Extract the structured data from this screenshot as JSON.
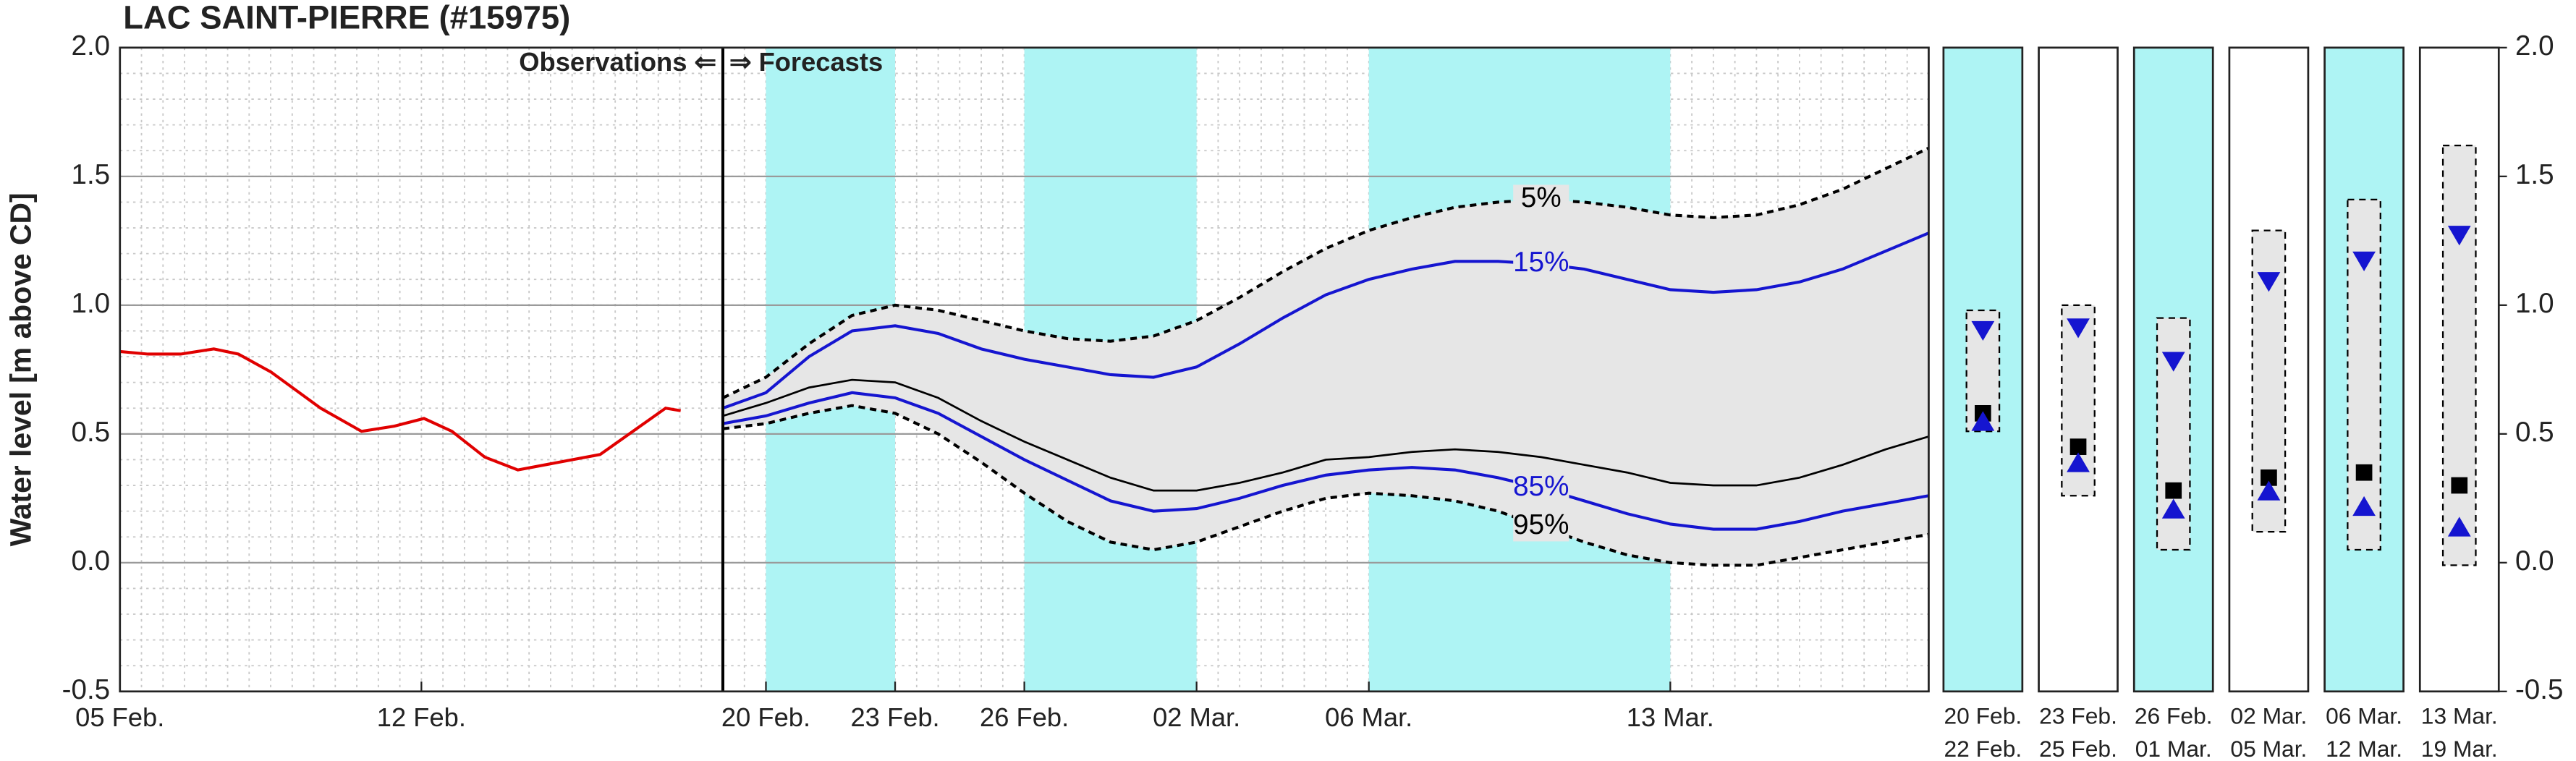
{
  "chart_data": [
    {
      "type": "line",
      "title": "LAC SAINT-PIERRE (#15975)",
      "ylabel": "Water level [m above CD]",
      "xlim": [
        0,
        42
      ],
      "xticks": [
        {
          "value": 0,
          "label": "05 Feb."
        },
        {
          "value": 7,
          "label": "12 Feb."
        },
        {
          "value": 15,
          "label": "20 Feb."
        },
        {
          "value": 18,
          "label": "23 Feb."
        },
        {
          "value": 21,
          "label": "26 Feb."
        },
        {
          "value": 25,
          "label": "02 Mar."
        },
        {
          "value": 29,
          "label": "06 Mar."
        },
        {
          "value": 36,
          "label": "13 Mar."
        }
      ],
      "ylim": [
        -0.5,
        2
      ],
      "yticks": [
        {
          "value": 2,
          "label": "2.0"
        },
        {
          "value": 1.5,
          "label": "1.5"
        },
        {
          "value": 1,
          "label": "1.0"
        },
        {
          "value": 0.5,
          "label": "0.5"
        },
        {
          "value": 0,
          "label": "0.0"
        },
        {
          "value": -0.5,
          "label": "-0.5"
        }
      ],
      "grid": true,
      "yminor": 0.1,
      "xminor": 0.5,
      "shaded": [
        [
          15,
          18
        ],
        [
          21,
          25
        ],
        [
          29,
          36
        ]
      ],
      "shade_color": "#aef4f4",
      "range_fill": "#e6e6e6",
      "forecast_start": 14,
      "annotations": [
        "Observations ⇐",
        "⇒ Forecasts"
      ],
      "series": [
        {
          "color": "#e00000",
          "x": [
            0,
            0.65,
            1.41,
            2.18,
            2.75,
            3.51,
            4.66,
            5.61,
            6.37,
            7.06,
            7.71,
            8.47,
            9.24,
            10.19,
            11.15,
            11.91,
            12.67,
            13.02
          ],
          "values": [
            0.82,
            0.81,
            0.81,
            0.83,
            0.81,
            0.74,
            0.6,
            0.51,
            0.53,
            0.56,
            0.51,
            0.41,
            0.36,
            0.39,
            0.42,
            0.51,
            0.6,
            0.59
          ]
        },
        {
          "name": "5%",
          "color": "#000000",
          "dash": true,
          "x": [
            14,
            15,
            16,
            17,
            18,
            19,
            20,
            21,
            22,
            23,
            24,
            25,
            26,
            27,
            28,
            29,
            30,
            31,
            32,
            33,
            34,
            35,
            36,
            37,
            38,
            39,
            40,
            41,
            42
          ],
          "values": [
            0.64,
            0.72,
            0.85,
            0.96,
            1.0,
            0.98,
            0.94,
            0.9,
            0.87,
            0.86,
            0.88,
            0.94,
            1.03,
            1.13,
            1.22,
            1.29,
            1.34,
            1.38,
            1.4,
            1.41,
            1.4,
            1.38,
            1.35,
            1.34,
            1.35,
            1.39,
            1.45,
            1.53,
            1.61
          ]
        },
        {
          "name": "15%",
          "color": "#1515d0",
          "x": [
            14,
            15,
            16,
            17,
            18,
            19,
            20,
            21,
            22,
            23,
            24,
            25,
            26,
            27,
            28,
            29,
            30,
            31,
            32,
            33,
            34,
            35,
            36,
            37,
            38,
            39,
            40,
            41,
            42
          ],
          "values": [
            0.6,
            0.66,
            0.8,
            0.9,
            0.92,
            0.89,
            0.83,
            0.79,
            0.76,
            0.73,
            0.72,
            0.76,
            0.85,
            0.95,
            1.04,
            1.1,
            1.14,
            1.17,
            1.17,
            1.16,
            1.14,
            1.1,
            1.06,
            1.05,
            1.06,
            1.09,
            1.14,
            1.21,
            1.28
          ]
        },
        {
          "color": "#000000",
          "x": [
            14,
            15,
            16,
            17,
            18,
            19,
            20,
            21,
            22,
            23,
            24,
            25,
            26,
            27,
            28,
            29,
            30,
            31,
            32,
            33,
            34,
            35,
            36,
            37,
            38,
            39,
            40,
            41,
            42
          ],
          "values": [
            0.57,
            0.62,
            0.68,
            0.71,
            0.7,
            0.64,
            0.55,
            0.47,
            0.4,
            0.33,
            0.28,
            0.28,
            0.31,
            0.35,
            0.4,
            0.41,
            0.43,
            0.44,
            0.43,
            0.41,
            0.38,
            0.35,
            0.31,
            0.3,
            0.3,
            0.33,
            0.38,
            0.44,
            0.49
          ]
        },
        {
          "name": "85%",
          "color": "#1515d0",
          "x": [
            14,
            15,
            16,
            17,
            18,
            19,
            20,
            21,
            22,
            23,
            24,
            25,
            26,
            27,
            28,
            29,
            30,
            31,
            32,
            33,
            34,
            35,
            36,
            37,
            38,
            39,
            40,
            41,
            42
          ],
          "values": [
            0.54,
            0.57,
            0.62,
            0.66,
            0.64,
            0.58,
            0.49,
            0.4,
            0.32,
            0.24,
            0.2,
            0.21,
            0.25,
            0.3,
            0.34,
            0.36,
            0.37,
            0.36,
            0.33,
            0.29,
            0.24,
            0.19,
            0.15,
            0.13,
            0.13,
            0.16,
            0.2,
            0.23,
            0.26
          ]
        },
        {
          "name": "95%",
          "color": "#000000",
          "dash": true,
          "x": [
            14,
            15,
            16,
            17,
            18,
            19,
            20,
            21,
            22,
            23,
            24,
            25,
            26,
            27,
            28,
            29,
            30,
            31,
            32,
            33,
            34,
            35,
            36,
            37,
            38,
            39,
            40,
            41,
            42
          ],
          "values": [
            0.52,
            0.54,
            0.58,
            0.61,
            0.58,
            0.5,
            0.39,
            0.27,
            0.16,
            0.08,
            0.05,
            0.08,
            0.14,
            0.2,
            0.25,
            0.27,
            0.26,
            0.24,
            0.2,
            0.14,
            0.08,
            0.03,
            0.0,
            -0.01,
            -0.01,
            0.02,
            0.05,
            0.08,
            0.11
          ]
        }
      ]
    },
    {
      "type": "range",
      "categories": [
        {
          "start": "20 Feb.",
          "end": "22 Feb."
        },
        {
          "start": "23 Feb.",
          "end": "25 Feb."
        },
        {
          "start": "26 Feb.",
          "end": "01 Mar."
        },
        {
          "start": "02 Mar.",
          "end": "05 Mar."
        },
        {
          "start": "06 Mar.",
          "end": "12 Mar."
        },
        {
          "start": "13 Mar.",
          "end": "19 Mar."
        }
      ],
      "backgrounds": [
        "#aef4f4",
        "#ffffff",
        "#aef4f4",
        "#ffffff",
        "#aef4f4",
        "#ffffff"
      ],
      "ylim": [
        -0.5,
        2
      ],
      "yticks": [
        {
          "value": 2,
          "label": "2.0"
        },
        {
          "value": 1.5,
          "label": "1.5"
        },
        {
          "value": 1,
          "label": "1.0"
        },
        {
          "value": 0.5,
          "label": "0.5"
        },
        {
          "value": 0,
          "label": "0.0"
        },
        {
          "value": -0.5,
          "label": "-0.5"
        }
      ],
      "high": [
        0.98,
        1.0,
        0.95,
        1.29,
        1.41,
        1.62
      ],
      "low": [
        0.51,
        0.26,
        0.05,
        0.12,
        0.05,
        -0.01
      ],
      "upper": [
        0.9,
        0.91,
        0.78,
        1.09,
        1.17,
        1.27
      ],
      "median": [
        0.58,
        0.45,
        0.28,
        0.33,
        0.35,
        0.3
      ],
      "lower": [
        0.55,
        0.39,
        0.21,
        0.28,
        0.22,
        0.14
      ],
      "box_fill": "#e6e6e6",
      "median_color": "#000000",
      "quantile_color": "#1515d0"
    }
  ]
}
